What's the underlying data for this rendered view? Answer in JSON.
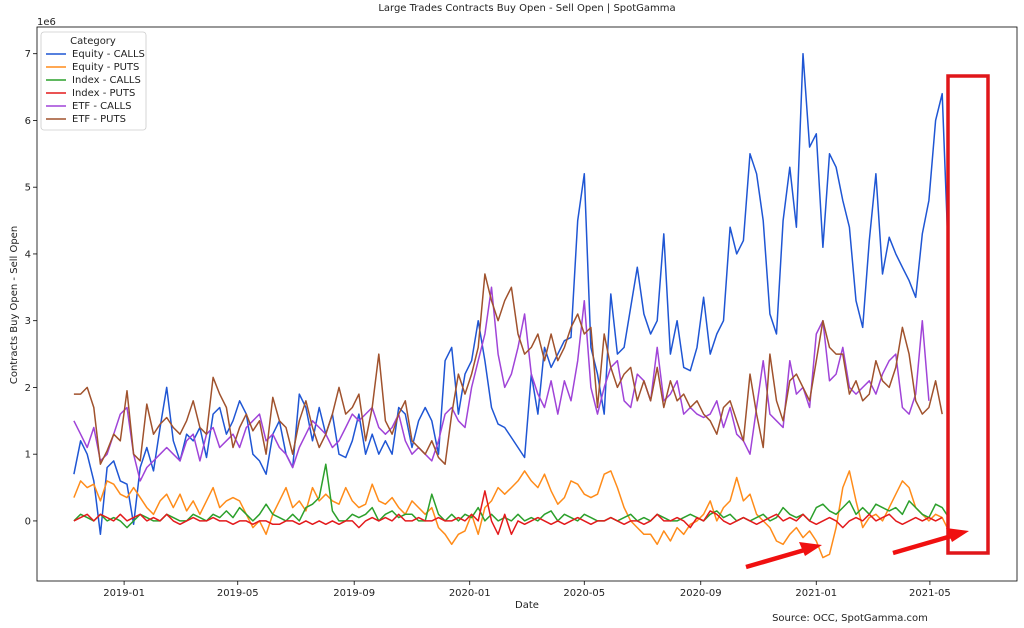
{
  "chart_data": {
    "type": "line",
    "title": "Large Trades Contracts Buy Open - Sell Open | SpotGamma",
    "xlabel": "Date",
    "ylabel": "Contracts Buy Open - Sell Open",
    "y_multiplier": "1e6",
    "source": "Source: OCC, SpotGamma.com",
    "xlim": [
      "2018-10-01",
      "2021-08-01"
    ],
    "ylim": [
      -0.9,
      7.4
    ],
    "x_ticks": [
      "2019-01",
      "2019-05",
      "2019-09",
      "2020-01",
      "2020-05",
      "2020-09",
      "2021-01",
      "2021-05"
    ],
    "y_ticks": [
      0,
      1,
      2,
      3,
      4,
      5,
      6,
      7
    ],
    "grid": false,
    "legend_title": "Category",
    "legend_position": "top-left",
    "series": [
      {
        "name": "Equity - CALLS",
        "color": "#1f56d4",
        "values": [
          0.7,
          1.2,
          1.0,
          0.6,
          -0.2,
          0.8,
          0.9,
          0.6,
          0.55,
          -0.05,
          0.8,
          1.1,
          0.75,
          1.4,
          2.0,
          1.2,
          0.9,
          1.3,
          1.2,
          1.4,
          0.95,
          1.6,
          1.7,
          1.3,
          1.5,
          1.8,
          1.6,
          1.0,
          0.9,
          0.7,
          1.3,
          1.5,
          1.0,
          0.8,
          1.9,
          1.7,
          1.2,
          1.7,
          1.3,
          1.6,
          1.0,
          0.95,
          1.2,
          1.6,
          1.0,
          1.3,
          1.0,
          1.2,
          1.0,
          1.7,
          1.6,
          1.1,
          1.5,
          1.7,
          1.5,
          1.0,
          2.4,
          2.6,
          1.6,
          2.2,
          2.4,
          3.0,
          2.4,
          1.7,
          1.45,
          1.4,
          1.25,
          1.1,
          0.95,
          2.2,
          1.6,
          2.6,
          2.3,
          2.5,
          2.7,
          2.75,
          4.5,
          5.2,
          2.6,
          2.2,
          1.6,
          3.4,
          2.5,
          2.6,
          3.2,
          3.8,
          3.1,
          2.8,
          3.0,
          4.3,
          2.5,
          3.0,
          2.3,
          2.25,
          2.6,
          3.35,
          2.5,
          2.8,
          3.0,
          4.4,
          4.0,
          4.2,
          5.5,
          5.2,
          4.5,
          3.1,
          2.8,
          4.5,
          5.3,
          4.4,
          7.0,
          5.6,
          5.8,
          4.1,
          5.5,
          5.3,
          4.8,
          4.4,
          3.3,
          2.9,
          4.2,
          5.2,
          3.7,
          4.25,
          4.0,
          3.8,
          3.6,
          3.35,
          4.3,
          4.8,
          6.0,
          6.4,
          3.8
        ]
      },
      {
        "name": "Equity - PUTS",
        "color": "#ff8c1a",
        "values": [
          0.35,
          0.6,
          0.5,
          0.55,
          0.3,
          0.6,
          0.55,
          0.4,
          0.35,
          0.5,
          0.35,
          0.2,
          0.1,
          0.3,
          0.4,
          0.2,
          0.4,
          0.15,
          0.3,
          0.1,
          0.3,
          0.5,
          0.2,
          0.3,
          0.35,
          0.3,
          0.1,
          -0.1,
          0.0,
          -0.2,
          0.1,
          0.3,
          0.5,
          0.2,
          0.3,
          0.15,
          0.5,
          0.3,
          0.4,
          0.3,
          0.25,
          0.5,
          0.3,
          0.2,
          0.25,
          0.55,
          0.3,
          0.25,
          0.35,
          0.2,
          0.1,
          0.3,
          0.2,
          0.1,
          0.2,
          -0.1,
          -0.2,
          -0.35,
          -0.2,
          -0.15,
          0.1,
          -0.2,
          0.2,
          0.3,
          0.5,
          0.4,
          0.5,
          0.6,
          0.75,
          0.6,
          0.5,
          0.7,
          0.45,
          0.25,
          0.35,
          0.6,
          0.55,
          0.4,
          0.35,
          0.4,
          0.7,
          0.75,
          0.5,
          0.2,
          0.0,
          -0.1,
          -0.2,
          -0.2,
          -0.35,
          -0.15,
          -0.3,
          -0.1,
          -0.2,
          -0.05,
          0.0,
          0.1,
          0.3,
          0.0,
          0.2,
          0.3,
          0.65,
          0.3,
          0.4,
          0.1,
          0.0,
          -0.1,
          -0.3,
          -0.35,
          -0.2,
          -0.1,
          -0.25,
          -0.15,
          -0.3,
          -0.55,
          -0.5,
          -0.1,
          0.5,
          0.75,
          0.3,
          -0.1,
          0.05,
          0.1,
          0.0,
          0.2,
          0.4,
          0.6,
          0.5,
          0.2,
          0.1,
          0.0,
          0.1,
          0.05,
          -0.15
        ]
      },
      {
        "name": "Index - CALLS",
        "color": "#2ca02c",
        "values": [
          0.0,
          0.1,
          0.05,
          0.0,
          0.1,
          0.0,
          0.05,
          0.0,
          -0.1,
          0.0,
          0.1,
          0.05,
          0.0,
          0.0,
          0.1,
          0.05,
          0.0,
          0.0,
          0.1,
          0.05,
          0.0,
          0.1,
          0.05,
          0.15,
          0.05,
          0.2,
          0.1,
          0.0,
          0.1,
          0.25,
          0.1,
          0.05,
          0.0,
          0.1,
          0.0,
          0.2,
          0.25,
          0.35,
          0.85,
          0.15,
          0.0,
          0.0,
          0.1,
          0.05,
          0.1,
          0.2,
          0.0,
          0.1,
          0.15,
          0.05,
          0.1,
          0.1,
          0.0,
          0.0,
          0.4,
          0.1,
          0.0,
          0.1,
          0.0,
          0.1,
          0.05,
          0.2,
          0.0,
          0.1,
          0.0,
          0.05,
          0.0,
          0.1,
          0.0,
          0.05,
          0.0,
          0.1,
          0.15,
          0.0,
          0.1,
          0.05,
          0.0,
          0.1,
          0.05,
          0.0,
          0.0,
          0.05,
          0.0,
          0.05,
          0.1,
          0.0,
          0.05,
          0.0,
          0.1,
          0.05,
          0.0,
          0.0,
          0.05,
          0.1,
          0.05,
          0.0,
          0.1,
          0.15,
          0.05,
          0.1,
          0.0,
          0.05,
          0.0,
          0.05,
          0.1,
          0.0,
          0.05,
          0.2,
          0.1,
          0.05,
          0.1,
          0.0,
          0.2,
          0.25,
          0.15,
          0.1,
          0.2,
          0.3,
          0.1,
          0.2,
          0.1,
          0.25,
          0.2,
          0.15,
          0.2,
          0.1,
          0.3,
          0.2,
          0.1,
          0.05,
          0.25,
          0.2,
          0.05
        ]
      },
      {
        "name": "Index - PUTS",
        "color": "#e31a1c",
        "values": [
          0.0,
          0.05,
          0.1,
          0.0,
          0.1,
          0.05,
          0.0,
          0.1,
          0.0,
          0.05,
          0.1,
          0.0,
          0.05,
          0.0,
          0.1,
          0.0,
          -0.05,
          0.0,
          0.05,
          0.0,
          0.0,
          0.05,
          0.0,
          0.0,
          -0.05,
          0.0,
          0.0,
          -0.05,
          0.0,
          0.0,
          -0.05,
          -0.05,
          0.0,
          0.0,
          -0.05,
          0.0,
          -0.05,
          0.0,
          -0.05,
          0.0,
          -0.05,
          0.0,
          0.0,
          -0.1,
          0.0,
          0.05,
          0.0,
          0.05,
          0.0,
          0.1,
          0.0,
          0.0,
          0.05,
          0.0,
          0.0,
          0.05,
          0.0,
          0.0,
          0.05,
          0.0,
          0.1,
          0.0,
          0.45,
          0.0,
          -0.2,
          0.1,
          -0.2,
          0.0,
          -0.05,
          0.0,
          0.05,
          0.0,
          -0.05,
          0.0,
          -0.05,
          0.0,
          0.05,
          0.0,
          -0.05,
          0.0,
          0.0,
          0.05,
          0.0,
          -0.05,
          0.0,
          0.0,
          -0.05,
          0.0,
          0.1,
          0.0,
          0.0,
          0.05,
          0.0,
          -0.1,
          0.05,
          0.0,
          0.15,
          0.1,
          0.0,
          -0.05,
          0.0,
          0.05,
          0.0,
          -0.05,
          0.0,
          0.05,
          0.1,
          0.0,
          0.05,
          0.0,
          0.1,
          0.0,
          -0.05,
          0.0,
          0.05,
          0.0,
          -0.1,
          0.0,
          0.05,
          0.0,
          0.1,
          0.0,
          0.05,
          0.1,
          0.0,
          -0.05,
          0.0,
          0.05,
          0.0,
          0.05,
          0.0,
          0.05
        ]
      },
      {
        "name": "ETF - CALLS",
        "color": "#a044d8",
        "values": [
          1.5,
          1.3,
          1.1,
          1.4,
          0.9,
          1.0,
          1.3,
          1.6,
          1.7,
          1.0,
          0.6,
          0.8,
          0.9,
          1.0,
          1.1,
          1.0,
          0.9,
          1.2,
          1.3,
          0.9,
          1.3,
          1.4,
          1.1,
          1.2,
          1.3,
          1.1,
          1.4,
          1.5,
          1.6,
          1.2,
          1.3,
          1.1,
          1.0,
          0.8,
          1.1,
          1.3,
          1.5,
          1.4,
          1.3,
          1.1,
          1.2,
          1.4,
          1.6,
          1.5,
          1.6,
          1.7,
          1.4,
          1.3,
          1.4,
          1.6,
          1.2,
          1.0,
          1.1,
          1.0,
          0.9,
          1.2,
          1.6,
          1.7,
          1.5,
          1.4,
          2.0,
          2.4,
          2.8,
          3.5,
          2.5,
          2.0,
          2.2,
          2.6,
          3.1,
          2.2,
          1.9,
          1.7,
          2.1,
          1.6,
          2.1,
          1.8,
          2.4,
          3.3,
          2.0,
          1.6,
          2.0,
          2.3,
          2.4,
          1.8,
          1.7,
          2.2,
          2.1,
          1.8,
          2.6,
          1.8,
          1.9,
          2.1,
          1.6,
          1.7,
          1.6,
          1.55,
          1.6,
          1.8,
          1.4,
          1.7,
          1.3,
          1.2,
          1.0,
          1.7,
          2.4,
          1.6,
          1.5,
          1.4,
          2.4,
          1.9,
          2.0,
          1.7,
          2.8,
          3.0,
          2.1,
          2.2,
          2.6,
          2.0,
          1.9,
          2.0,
          2.1,
          1.9,
          2.2,
          2.4,
          2.5,
          1.7,
          1.6,
          1.9,
          3.0,
          1.8
        ]
      },
      {
        "name": "ETF - PUTS",
        "color": "#a0522d",
        "values": [
          1.9,
          1.9,
          2.0,
          1.7,
          0.85,
          1.05,
          1.3,
          1.2,
          1.95,
          1.0,
          0.9,
          1.75,
          1.3,
          1.45,
          1.55,
          1.4,
          1.3,
          1.5,
          1.8,
          1.4,
          1.3,
          2.15,
          1.9,
          1.7,
          1.1,
          1.4,
          1.6,
          1.35,
          1.5,
          1.0,
          1.85,
          1.5,
          1.4,
          1.0,
          1.5,
          1.8,
          1.4,
          1.1,
          1.3,
          1.6,
          2.0,
          1.6,
          1.7,
          1.9,
          1.2,
          1.7,
          2.5,
          1.5,
          1.3,
          1.6,
          1.8,
          1.2,
          1.1,
          1.0,
          1.2,
          0.95,
          0.85,
          1.6,
          2.2,
          1.9,
          2.2,
          2.6,
          3.7,
          3.3,
          3.0,
          3.3,
          3.5,
          2.8,
          2.5,
          2.6,
          2.8,
          2.4,
          2.8,
          2.4,
          2.6,
          2.9,
          3.1,
          2.8,
          2.9,
          1.7,
          2.8,
          2.3,
          2.0,
          2.2,
          2.3,
          1.8,
          2.1,
          1.8,
          2.3,
          1.7,
          2.1,
          1.8,
          1.9,
          1.7,
          1.8,
          1.6,
          1.5,
          1.3,
          1.7,
          1.8,
          1.5,
          1.2,
          2.2,
          1.6,
          1.1,
          2.5,
          1.8,
          1.5,
          2.1,
          2.2,
          2.0,
          1.8,
          2.4,
          3.0,
          2.6,
          2.5,
          2.5,
          1.9,
          2.1,
          1.8,
          1.9,
          2.4,
          2.1,
          2.0,
          2.3,
          2.9,
          2.5,
          1.8,
          1.6,
          1.7,
          2.1,
          1.6
        ]
      }
    ]
  }
}
